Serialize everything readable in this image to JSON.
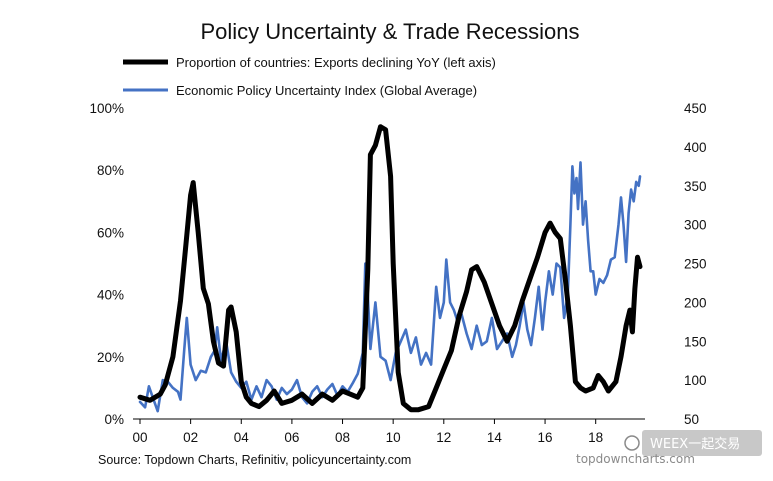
{
  "chart_data": {
    "type": "line",
    "title": "Policy Uncertainty & Trade Recessions",
    "x_ticks": [
      "00",
      "02",
      "04",
      "06",
      "08",
      "10",
      "12",
      "14",
      "16",
      "18"
    ],
    "x_range": [
      2000,
      2019.75
    ],
    "y_left": {
      "ticks": [
        "0%",
        "20%",
        "40%",
        "60%",
        "80%",
        "100%"
      ],
      "range": [
        0,
        100
      ]
    },
    "y_right": {
      "ticks": [
        "50",
        "100",
        "150",
        "200",
        "250",
        "300",
        "350",
        "400",
        "450"
      ],
      "range": [
        50,
        450
      ]
    },
    "grid": false,
    "legend_position": "top",
    "series": [
      {
        "name": "Proportion of countries: Exports declining YoY (left axis)",
        "axis": "left",
        "color": "#000000",
        "points": [
          [
            2000.0,
            7
          ],
          [
            2000.4,
            6
          ],
          [
            2000.8,
            8
          ],
          [
            2001.0,
            11
          ],
          [
            2001.3,
            20
          ],
          [
            2001.6,
            38
          ],
          [
            2001.8,
            55
          ],
          [
            2002.0,
            72
          ],
          [
            2002.1,
            76
          ],
          [
            2002.3,
            60
          ],
          [
            2002.5,
            42
          ],
          [
            2002.7,
            37
          ],
          [
            2002.9,
            25
          ],
          [
            2003.1,
            18
          ],
          [
            2003.3,
            17
          ],
          [
            2003.5,
            35
          ],
          [
            2003.6,
            36
          ],
          [
            2003.8,
            28
          ],
          [
            2004.0,
            12
          ],
          [
            2004.2,
            7
          ],
          [
            2004.4,
            5
          ],
          [
            2004.7,
            4
          ],
          [
            2005.0,
            6
          ],
          [
            2005.3,
            9
          ],
          [
            2005.6,
            5
          ],
          [
            2006.0,
            6
          ],
          [
            2006.4,
            8
          ],
          [
            2006.8,
            5
          ],
          [
            2007.2,
            8
          ],
          [
            2007.6,
            6
          ],
          [
            2008.0,
            9
          ],
          [
            2008.3,
            8
          ],
          [
            2008.6,
            7
          ],
          [
            2008.8,
            10
          ],
          [
            2009.0,
            48
          ],
          [
            2009.1,
            85
          ],
          [
            2009.3,
            88
          ],
          [
            2009.5,
            94
          ],
          [
            2009.7,
            93
          ],
          [
            2009.9,
            78
          ],
          [
            2010.0,
            50
          ],
          [
            2010.2,
            15
          ],
          [
            2010.4,
            5
          ],
          [
            2010.7,
            3
          ],
          [
            2011.0,
            3
          ],
          [
            2011.4,
            4
          ],
          [
            2011.7,
            10
          ],
          [
            2012.0,
            16
          ],
          [
            2012.3,
            22
          ],
          [
            2012.6,
            33
          ],
          [
            2012.9,
            41
          ],
          [
            2013.1,
            48
          ],
          [
            2013.3,
            49
          ],
          [
            2013.6,
            44
          ],
          [
            2013.9,
            37
          ],
          [
            2014.2,
            30
          ],
          [
            2014.5,
            25
          ],
          [
            2014.8,
            30
          ],
          [
            2015.1,
            38
          ],
          [
            2015.4,
            45
          ],
          [
            2015.7,
            52
          ],
          [
            2016.0,
            60
          ],
          [
            2016.2,
            63
          ],
          [
            2016.4,
            60
          ],
          [
            2016.6,
            58
          ],
          [
            2016.8,
            45
          ],
          [
            2017.0,
            30
          ],
          [
            2017.2,
            12
          ],
          [
            2017.4,
            10
          ],
          [
            2017.6,
            9
          ],
          [
            2017.9,
            10
          ],
          [
            2018.1,
            14
          ],
          [
            2018.3,
            12
          ],
          [
            2018.5,
            9
          ],
          [
            2018.8,
            12
          ],
          [
            2019.0,
            20
          ],
          [
            2019.2,
            30
          ],
          [
            2019.35,
            35
          ],
          [
            2019.45,
            28
          ],
          [
            2019.55,
            42
          ],
          [
            2019.65,
            52
          ],
          [
            2019.75,
            49
          ]
        ]
      },
      {
        "name": "Economic Policy Uncertainty Index (Global Average)",
        "axis": "right",
        "color": "#4472c4",
        "points": [
          [
            2000.0,
            72
          ],
          [
            2000.2,
            65
          ],
          [
            2000.35,
            92
          ],
          [
            2000.5,
            78
          ],
          [
            2000.7,
            60
          ],
          [
            2000.9,
            100
          ],
          [
            2001.1,
            98
          ],
          [
            2001.3,
            90
          ],
          [
            2001.5,
            85
          ],
          [
            2001.6,
            75
          ],
          [
            2001.75,
            140
          ],
          [
            2001.85,
            180
          ],
          [
            2002.0,
            120
          ],
          [
            2002.2,
            100
          ],
          [
            2002.4,
            112
          ],
          [
            2002.6,
            110
          ],
          [
            2002.8,
            130
          ],
          [
            2002.95,
            138
          ],
          [
            2003.05,
            168
          ],
          [
            2003.2,
            125
          ],
          [
            2003.4,
            150
          ],
          [
            2003.6,
            110
          ],
          [
            2003.8,
            98
          ],
          [
            2004.0,
            90
          ],
          [
            2004.2,
            98
          ],
          [
            2004.4,
            75
          ],
          [
            2004.6,
            92
          ],
          [
            2004.8,
            78
          ],
          [
            2005.0,
            100
          ],
          [
            2005.2,
            92
          ],
          [
            2005.4,
            75
          ],
          [
            2005.6,
            90
          ],
          [
            2005.8,
            82
          ],
          [
            2006.0,
            88
          ],
          [
            2006.2,
            100
          ],
          [
            2006.4,
            78
          ],
          [
            2006.6,
            70
          ],
          [
            2006.8,
            85
          ],
          [
            2007.0,
            92
          ],
          [
            2007.2,
            78
          ],
          [
            2007.4,
            88
          ],
          [
            2007.6,
            95
          ],
          [
            2007.8,
            80
          ],
          [
            2008.0,
            92
          ],
          [
            2008.2,
            85
          ],
          [
            2008.4,
            96
          ],
          [
            2008.6,
            108
          ],
          [
            2008.8,
            135
          ],
          [
            2008.9,
            250
          ],
          [
            2009.0,
            210
          ],
          [
            2009.1,
            140
          ],
          [
            2009.3,
            200
          ],
          [
            2009.5,
            130
          ],
          [
            2009.7,
            125
          ],
          [
            2009.9,
            100
          ],
          [
            2010.1,
            135
          ],
          [
            2010.3,
            150
          ],
          [
            2010.5,
            165
          ],
          [
            2010.7,
            135
          ],
          [
            2010.9,
            155
          ],
          [
            2011.1,
            120
          ],
          [
            2011.3,
            135
          ],
          [
            2011.5,
            120
          ],
          [
            2011.7,
            220
          ],
          [
            2011.85,
            180
          ],
          [
            2012.0,
            200
          ],
          [
            2012.1,
            255
          ],
          [
            2012.25,
            200
          ],
          [
            2012.4,
            190
          ],
          [
            2012.55,
            175
          ],
          [
            2012.7,
            185
          ],
          [
            2012.9,
            160
          ],
          [
            2013.1,
            140
          ],
          [
            2013.3,
            170
          ],
          [
            2013.5,
            145
          ],
          [
            2013.7,
            150
          ],
          [
            2013.9,
            180
          ],
          [
            2014.1,
            140
          ],
          [
            2014.3,
            150
          ],
          [
            2014.5,
            160
          ],
          [
            2014.7,
            130
          ],
          [
            2014.85,
            145
          ],
          [
            2015.0,
            170
          ],
          [
            2015.15,
            200
          ],
          [
            2015.3,
            165
          ],
          [
            2015.45,
            145
          ],
          [
            2015.6,
            180
          ],
          [
            2015.75,
            220
          ],
          [
            2015.9,
            165
          ],
          [
            2016.0,
            200
          ],
          [
            2016.15,
            240
          ],
          [
            2016.3,
            210
          ],
          [
            2016.45,
            250
          ],
          [
            2016.6,
            245
          ],
          [
            2016.75,
            180
          ],
          [
            2016.9,
            210
          ],
          [
            2017.0,
            300
          ],
          [
            2017.08,
            375
          ],
          [
            2017.16,
            340
          ],
          [
            2017.24,
            360
          ],
          [
            2017.3,
            320
          ],
          [
            2017.4,
            380
          ],
          [
            2017.5,
            300
          ],
          [
            2017.6,
            330
          ],
          [
            2017.7,
            280
          ],
          [
            2017.8,
            240
          ],
          [
            2017.9,
            240
          ],
          [
            2018.0,
            210
          ],
          [
            2018.15,
            230
          ],
          [
            2018.3,
            225
          ],
          [
            2018.45,
            235
          ],
          [
            2018.6,
            255
          ],
          [
            2018.75,
            258
          ],
          [
            2018.9,
            300
          ],
          [
            2019.0,
            335
          ],
          [
            2019.1,
            300
          ],
          [
            2019.2,
            252
          ],
          [
            2019.3,
            315
          ],
          [
            2019.4,
            345
          ],
          [
            2019.5,
            330
          ],
          [
            2019.6,
            355
          ],
          [
            2019.7,
            350
          ],
          [
            2019.75,
            362
          ]
        ]
      }
    ]
  },
  "source": "Source: Topdown Charts, Refinitiv, policyuncertainty.com",
  "watermark": {
    "site": "topdowncharts.com",
    "brand": "WEEX一起交易"
  }
}
